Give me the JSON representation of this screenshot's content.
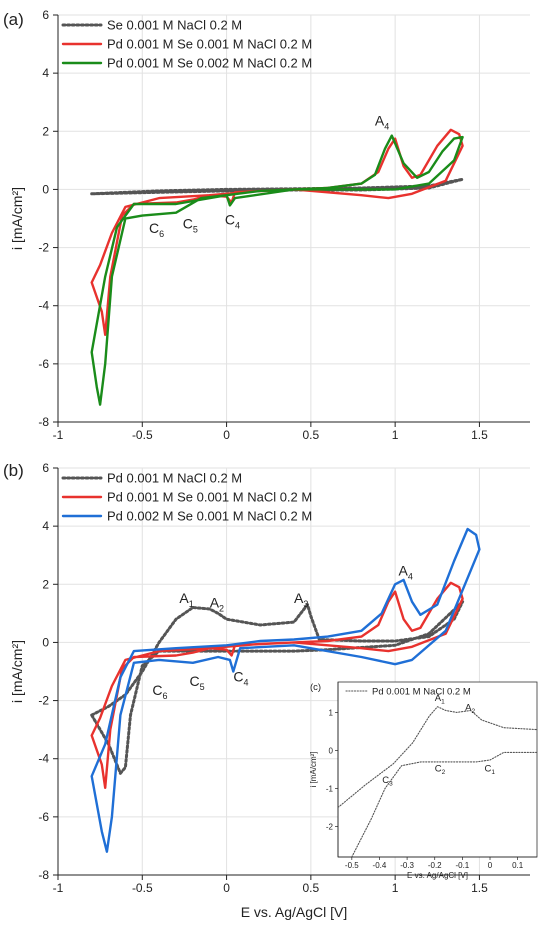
{
  "panel_a_label": "(a)",
  "panel_b_label": "(b)",
  "chart_data": [
    {
      "id": "a",
      "type": "line",
      "xlabel": "",
      "ylabel": "i [mA/cm²]",
      "xlim": [
        -1,
        1.8
      ],
      "ylim": [
        -8,
        6
      ],
      "x_ticks": [
        "-1",
        "-0.5",
        "0",
        "0.5",
        "1",
        "1.5"
      ],
      "y_ticks": [
        "-8",
        "-6",
        "-4",
        "-2",
        "0",
        "2",
        "4",
        "6"
      ],
      "grid": true,
      "legend": "top-left",
      "series": [
        {
          "name": "Se 0.001 M NaCl 0.2 M",
          "color": "#555555",
          "dash": "dotted",
          "points": [
            [
              -0.8,
              -0.15
            ],
            [
              -0.4,
              -0.05
            ],
            [
              0,
              0
            ],
            [
              0.4,
              0.02
            ],
            [
              0.8,
              0.05
            ],
            [
              1.2,
              0.12
            ],
            [
              1.4,
              0.35
            ],
            [
              1.2,
              0.05
            ],
            [
              0.8,
              -0.02
            ],
            [
              0.4,
              -0.02
            ],
            [
              0,
              -0.05
            ],
            [
              -0.4,
              -0.1
            ],
            [
              -0.8,
              -0.15
            ]
          ]
        },
        {
          "name": "Pd 0.001 M Se 0.001 M NaCl 0.2 M",
          "color": "#e8322e",
          "dash": "solid",
          "points": [
            [
              -0.8,
              -3.2
            ],
            [
              -0.74,
              -4.2
            ],
            [
              -0.72,
              -5.0
            ],
            [
              -0.69,
              -3.0
            ],
            [
              -0.62,
              -0.9
            ],
            [
              -0.55,
              -0.5
            ],
            [
              -0.3,
              -0.45
            ],
            [
              -0.2,
              -0.35
            ],
            [
              -0.1,
              -0.2
            ],
            [
              0,
              -0.25
            ],
            [
              0.03,
              -0.45
            ],
            [
              0.05,
              -0.1
            ],
            [
              0.4,
              0
            ],
            [
              0.8,
              -0.2
            ],
            [
              0.96,
              -0.3
            ],
            [
              1.1,
              -0.15
            ],
            [
              1.3,
              0.3
            ],
            [
              1.4,
              1.5
            ],
            [
              1.38,
              1.9
            ],
            [
              1.33,
              2.05
            ],
            [
              1.25,
              1.5
            ],
            [
              1.15,
              0.5
            ],
            [
              1.1,
              0.4
            ],
            [
              1.05,
              0.8
            ],
            [
              1.0,
              1.75
            ],
            [
              0.96,
              1.4
            ],
            [
              0.9,
              0.6
            ],
            [
              0.8,
              0.2
            ],
            [
              0.6,
              0.05
            ],
            [
              0.4,
              0
            ],
            [
              0.2,
              -0.05
            ],
            [
              -0.1,
              -0.2
            ],
            [
              -0.4,
              -0.3
            ],
            [
              -0.6,
              -0.6
            ],
            [
              -0.68,
              -1.5
            ],
            [
              -0.75,
              -2.6
            ],
            [
              -0.8,
              -3.2
            ]
          ]
        },
        {
          "name": "Pd 0.001 M Se 0.002 M NaCl 0.2 M",
          "color": "#1a8c1a",
          "dash": "solid",
          "points": [
            [
              -0.8,
              -5.6
            ],
            [
              -0.77,
              -6.8
            ],
            [
              -0.75,
              -7.4
            ],
            [
              -0.72,
              -6.0
            ],
            [
              -0.68,
              -3.0
            ],
            [
              -0.6,
              -1.0
            ],
            [
              -0.5,
              -0.9
            ],
            [
              -0.3,
              -0.8
            ],
            [
              -0.15,
              -0.3
            ],
            [
              0,
              -0.2
            ],
            [
              0.02,
              -0.55
            ],
            [
              0.05,
              -0.3
            ],
            [
              0.4,
              0
            ],
            [
              0.8,
              0
            ],
            [
              1.0,
              0
            ],
            [
              1.2,
              0.2
            ],
            [
              1.35,
              1.0
            ],
            [
              1.4,
              1.8
            ],
            [
              1.35,
              1.75
            ],
            [
              1.28,
              1.3
            ],
            [
              1.2,
              0.6
            ],
            [
              1.13,
              0.4
            ],
            [
              1.05,
              0.9
            ],
            [
              0.98,
              1.85
            ],
            [
              0.94,
              1.4
            ],
            [
              0.88,
              0.5
            ],
            [
              0.8,
              0.2
            ],
            [
              0.6,
              0.05
            ],
            [
              0.4,
              0
            ],
            [
              0.2,
              -0.05
            ],
            [
              0,
              -0.2
            ],
            [
              -0.3,
              -0.5
            ],
            [
              -0.55,
              -0.5
            ],
            [
              -0.65,
              -1.3
            ],
            [
              -0.72,
              -3.0
            ],
            [
              -0.8,
              -5.6
            ]
          ]
        }
      ],
      "annotations": [
        {
          "text": "A",
          "sub": "4",
          "x": 0.88,
          "y": 2.2
        },
        {
          "text": "C",
          "sub": "4",
          "x": -0.01,
          "y": -1.2
        },
        {
          "text": "C",
          "sub": "5",
          "x": -0.26,
          "y": -1.35
        },
        {
          "text": "C",
          "sub": "6",
          "x": -0.46,
          "y": -1.5
        }
      ]
    },
    {
      "id": "b",
      "type": "line",
      "xlabel": "E vs. Ag/AgCl [V]",
      "ylabel": "i [mA/cm²]",
      "xlim": [
        -1,
        1.8
      ],
      "ylim": [
        -8,
        6
      ],
      "x_ticks": [
        "-1",
        "-0.5",
        "0",
        "0.5",
        "1",
        "1.5"
      ],
      "y_ticks": [
        "-8",
        "-6",
        "-4",
        "-2",
        "0",
        "2",
        "4",
        "6"
      ],
      "grid": true,
      "legend": "top-left",
      "series": [
        {
          "name": "Pd 0.001 M NaCl 0.2 M",
          "color": "#555555",
          "dash": "dotted",
          "points": [
            [
              -0.8,
              -2.5
            ],
            [
              -0.7,
              -2.2
            ],
            [
              -0.6,
              -1.8
            ],
            [
              -0.5,
              -1.0
            ],
            [
              -0.4,
              0
            ],
            [
              -0.3,
              0.8
            ],
            [
              -0.2,
              1.2
            ],
            [
              -0.1,
              1.15
            ],
            [
              -0.05,
              1.0
            ],
            [
              0,
              0.8
            ],
            [
              0.2,
              0.6
            ],
            [
              0.4,
              0.7
            ],
            [
              0.48,
              1.3
            ],
            [
              0.5,
              0.9
            ],
            [
              0.55,
              0.1
            ],
            [
              0.8,
              0.05
            ],
            [
              1.0,
              0.05
            ],
            [
              1.2,
              0.2
            ],
            [
              1.35,
              0.8
            ],
            [
              1.4,
              1.4
            ],
            [
              1.2,
              0.3
            ],
            [
              1.0,
              -0.1
            ],
            [
              0.6,
              -0.25
            ],
            [
              0.4,
              -0.3
            ],
            [
              0.2,
              -0.3
            ],
            [
              0,
              -0.3
            ],
            [
              -0.2,
              -0.3
            ],
            [
              -0.4,
              -0.3
            ],
            [
              -0.5,
              -0.8
            ],
            [
              -0.57,
              -2.5
            ],
            [
              -0.6,
              -4.3
            ],
            [
              -0.63,
              -4.5
            ],
            [
              -0.7,
              -3.5
            ],
            [
              -0.8,
              -2.5
            ]
          ]
        },
        {
          "name": "Pd 0.001 M Se 0.001 M NaCl 0.2 M",
          "color": "#e8322e",
          "dash": "solid",
          "points": [
            [
              -0.8,
              -3.2
            ],
            [
              -0.74,
              -4.2
            ],
            [
              -0.72,
              -5.0
            ],
            [
              -0.69,
              -3.0
            ],
            [
              -0.62,
              -0.9
            ],
            [
              -0.55,
              -0.5
            ],
            [
              -0.3,
              -0.45
            ],
            [
              -0.2,
              -0.35
            ],
            [
              -0.1,
              -0.2
            ],
            [
              0,
              -0.25
            ],
            [
              0.03,
              -0.45
            ],
            [
              0.05,
              -0.1
            ],
            [
              0.4,
              0
            ],
            [
              0.8,
              -0.2
            ],
            [
              0.96,
              -0.3
            ],
            [
              1.1,
              -0.15
            ],
            [
              1.3,
              0.3
            ],
            [
              1.4,
              1.5
            ],
            [
              1.38,
              1.9
            ],
            [
              1.33,
              2.05
            ],
            [
              1.25,
              1.5
            ],
            [
              1.15,
              0.5
            ],
            [
              1.1,
              0.4
            ],
            [
              1.05,
              0.8
            ],
            [
              1.0,
              1.75
            ],
            [
              0.96,
              1.4
            ],
            [
              0.9,
              0.6
            ],
            [
              0.8,
              0.2
            ],
            [
              0.6,
              0.05
            ],
            [
              0.4,
              0
            ],
            [
              0.2,
              -0.05
            ],
            [
              -0.1,
              -0.2
            ],
            [
              -0.4,
              -0.3
            ],
            [
              -0.6,
              -0.6
            ],
            [
              -0.68,
              -1.5
            ],
            [
              -0.75,
              -2.6
            ],
            [
              -0.8,
              -3.2
            ]
          ]
        },
        {
          "name": "Pd 0.002 M Se 0.001 M NaCl 0.2 M",
          "color": "#1f6fd6",
          "dash": "solid",
          "points": [
            [
              -0.8,
              -4.6
            ],
            [
              -0.74,
              -6.5
            ],
            [
              -0.71,
              -7.2
            ],
            [
              -0.68,
              -6.0
            ],
            [
              -0.63,
              -2.5
            ],
            [
              -0.55,
              -0.7
            ],
            [
              -0.4,
              -0.6
            ],
            [
              -0.2,
              -0.7
            ],
            [
              -0.05,
              -0.5
            ],
            [
              0.02,
              -0.6
            ],
            [
              0.04,
              -1.0
            ],
            [
              0.08,
              -0.2
            ],
            [
              0.4,
              -0.1
            ],
            [
              0.8,
              -0.5
            ],
            [
              1.0,
              -0.75
            ],
            [
              1.1,
              -0.6
            ],
            [
              1.3,
              0.4
            ],
            [
              1.45,
              2.5
            ],
            [
              1.5,
              3.2
            ],
            [
              1.48,
              3.7
            ],
            [
              1.43,
              3.9
            ],
            [
              1.35,
              2.8
            ],
            [
              1.25,
              1.3
            ],
            [
              1.15,
              0.95
            ],
            [
              1.1,
              1.4
            ],
            [
              1.05,
              2.15
            ],
            [
              1.0,
              2.0
            ],
            [
              0.92,
              1.0
            ],
            [
              0.8,
              0.4
            ],
            [
              0.6,
              0.2
            ],
            [
              0.4,
              0.1
            ],
            [
              0.2,
              0.05
            ],
            [
              0,
              -0.1
            ],
            [
              -0.3,
              -0.2
            ],
            [
              -0.55,
              -0.3
            ],
            [
              -0.63,
              -1.2
            ],
            [
              -0.72,
              -3.5
            ],
            [
              -0.8,
              -4.6
            ]
          ]
        }
      ],
      "annotations": [
        {
          "text": "A",
          "sub": "1",
          "x": -0.28,
          "y": 1.35
        },
        {
          "text": "A",
          "sub": "2",
          "x": -0.1,
          "y": 1.2
        },
        {
          "text": "A",
          "sub": "3",
          "x": 0.4,
          "y": 1.35
        },
        {
          "text": "A",
          "sub": "4",
          "x": 1.02,
          "y": 2.3
        },
        {
          "text": "C",
          "sub": "4",
          "x": 0.04,
          "y": -1.35
        },
        {
          "text": "C",
          "sub": "5",
          "x": -0.22,
          "y": -1.5
        },
        {
          "text": "C",
          "sub": "6",
          "x": -0.44,
          "y": -1.8
        }
      ]
    },
    {
      "id": "c",
      "type": "line",
      "panel_label": "(c)",
      "xlabel": "E vs. Ag/AgCl [V]",
      "ylabel": "i [mA/cm²]",
      "xlim": [
        -0.55,
        0.17
      ],
      "ylim": [
        -2.8,
        1.8
      ],
      "x_ticks": [
        [
          "-0.5",
          -0.5
        ],
        [
          "-0.4",
          -0.4
        ],
        [
          "-0.3",
          -0.3
        ],
        [
          "-0.2",
          -0.2
        ],
        [
          "-0.1",
          -0.1
        ],
        [
          "0",
          0
        ],
        [
          "0.1",
          0.1
        ]
      ],
      "y_ticks": [
        [
          "-2",
          -2
        ],
        [
          "-1",
          -1
        ],
        [
          "0",
          0
        ],
        [
          "1",
          1
        ]
      ],
      "grid": false,
      "legend": "top-left",
      "series": [
        {
          "name": "Pd 0.001 M NaCl 0.2 M",
          "color": "#555555",
          "dash": "dotted",
          "points": [
            [
              -0.55,
              -1.5
            ],
            [
              -0.45,
              -0.9
            ],
            [
              -0.35,
              -0.35
            ],
            [
              -0.28,
              0.2
            ],
            [
              -0.22,
              0.9
            ],
            [
              -0.19,
              1.15
            ],
            [
              -0.16,
              1.05
            ],
            [
              -0.12,
              1.0
            ],
            [
              -0.07,
              1.05
            ],
            [
              -0.03,
              0.8
            ],
            [
              0.05,
              0.6
            ],
            [
              0.17,
              0.55
            ]
          ]
        },
        {
          "name": "",
          "color": "#555555",
          "dash": "dotted",
          "points": [
            [
              -0.5,
              -2.8
            ],
            [
              -0.43,
              -1.8
            ],
            [
              -0.38,
              -1.0
            ],
            [
              -0.32,
              -0.4
            ],
            [
              -0.25,
              -0.3
            ],
            [
              -0.15,
              -0.3
            ],
            [
              -0.05,
              -0.3
            ],
            [
              0,
              -0.25
            ],
            [
              0.05,
              -0.05
            ],
            [
              0.17,
              -0.05
            ]
          ]
        }
      ],
      "annotations": [
        {
          "text": "A",
          "sub": "1",
          "x": -0.2,
          "y": 1.3
        },
        {
          "text": "A",
          "sub": "2",
          "x": -0.09,
          "y": 1.05
        },
        {
          "text": "C",
          "sub": "1",
          "x": -0.02,
          "y": -0.55
        },
        {
          "text": "C",
          "sub": "2",
          "x": -0.2,
          "y": -0.55
        },
        {
          "text": "C",
          "sub": "3",
          "x": -0.39,
          "y": -0.85
        }
      ]
    }
  ]
}
